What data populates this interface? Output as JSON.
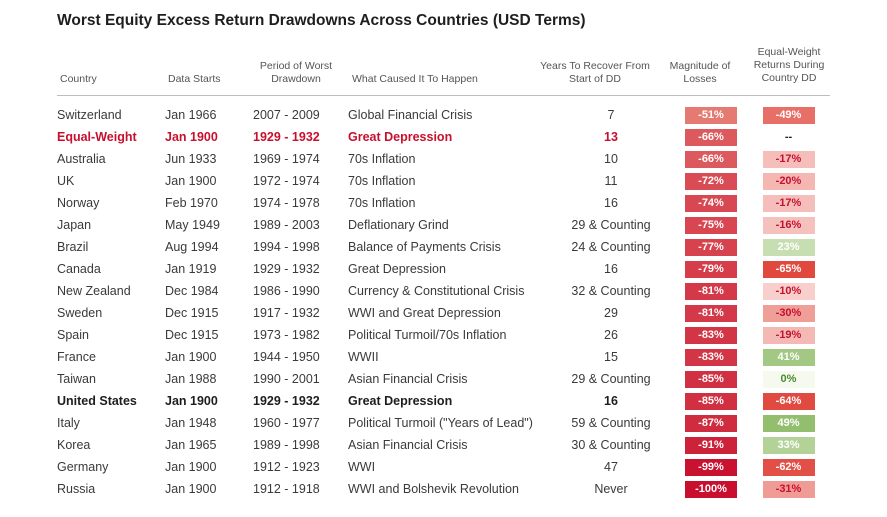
{
  "title": "Worst Equity Excess Return Drawdowns Across Countries (USD Terms)",
  "headers": {
    "country": "Country",
    "data_starts": "Data Starts",
    "period": "Period of Worst Drawdown",
    "cause": "What Caused It To Happen",
    "years": "Years To Recover From Start of DD",
    "magnitude": "Magnitude of Losses",
    "eq": "Equal-Weight Returns During Country DD"
  },
  "rows": [
    {
      "country": "Switzerland",
      "start": "Jan 1966",
      "period": "2007 - 2009",
      "cause": "Global Financial Crisis",
      "years": "7",
      "mag": "-51%",
      "eq": "-49%",
      "style": ""
    },
    {
      "country": "Equal-Weight",
      "start": "Jan 1900",
      "period": "1929 - 1932",
      "cause": "Great Depression",
      "years": "13",
      "mag": "-66%",
      "eq": "--",
      "style": "hl-red"
    },
    {
      "country": "Australia",
      "start": "Jun 1933",
      "period": "1969 - 1974",
      "cause": "70s Inflation",
      "years": "10",
      "mag": "-66%",
      "eq": "-17%",
      "style": ""
    },
    {
      "country": "UK",
      "start": "Jan 1900",
      "period": "1972 - 1974",
      "cause": "70s Inflation",
      "years": "11",
      "mag": "-72%",
      "eq": "-20%",
      "style": ""
    },
    {
      "country": "Norway",
      "start": "Feb 1970",
      "period": "1974 - 1978",
      "cause": "70s Inflation",
      "years": "16",
      "mag": "-74%",
      "eq": "-17%",
      "style": ""
    },
    {
      "country": "Japan",
      "start": "May 1949",
      "period": "1989 - 2003",
      "cause": "Deflationary Grind",
      "years": "29 & Counting",
      "mag": "-75%",
      "eq": "-16%",
      "style": ""
    },
    {
      "country": "Brazil",
      "start": "Aug 1994",
      "period": "1994 - 1998",
      "cause": "Balance of Payments Crisis",
      "years": "24 & Counting",
      "mag": "-77%",
      "eq": "23%",
      "style": ""
    },
    {
      "country": "Canada",
      "start": "Jan 1919",
      "period": "1929 - 1932",
      "cause": "Great Depression",
      "years": "16",
      "mag": "-79%",
      "eq": "-65%",
      "style": ""
    },
    {
      "country": "New Zealand",
      "start": "Dec 1984",
      "period": "1986 - 1990",
      "cause": "Currency & Constitutional Crisis",
      "years": "32 & Counting",
      "mag": "-81%",
      "eq": "-10%",
      "style": ""
    },
    {
      "country": "Sweden",
      "start": "Dec 1915",
      "period": "1917 - 1932",
      "cause": "WWI and Great Depression",
      "years": "29",
      "mag": "-81%",
      "eq": "-30%",
      "style": ""
    },
    {
      "country": "Spain",
      "start": "Dec 1915",
      "period": "1973 - 1982",
      "cause": "Political Turmoil/70s Inflation",
      "years": "26",
      "mag": "-83%",
      "eq": "-19%",
      "style": ""
    },
    {
      "country": "France",
      "start": "Jan 1900",
      "period": "1944 - 1950",
      "cause": "WWII",
      "years": "15",
      "mag": "-83%",
      "eq": "41%",
      "style": ""
    },
    {
      "country": "Taiwan",
      "start": "Jan 1988",
      "period": "1990 - 2001",
      "cause": "Asian Financial Crisis",
      "years": "29 & Counting",
      "mag": "-85%",
      "eq": "0%",
      "style": ""
    },
    {
      "country": "United States",
      "start": "Jan 1900",
      "period": "1929 - 1932",
      "cause": "Great Depression",
      "years": "16",
      "mag": "-85%",
      "eq": "-64%",
      "style": "hl-bold"
    },
    {
      "country": "Italy",
      "start": "Jan 1948",
      "period": "1960 - 1977",
      "cause": "Political Turmoil (\"Years of Lead\")",
      "years": "59 & Counting",
      "mag": "-87%",
      "eq": "49%",
      "style": ""
    },
    {
      "country": "Korea",
      "start": "Jan 1965",
      "period": "1989 - 1998",
      "cause": "Asian Financial Crisis",
      "years": "30 & Counting",
      "mag": "-91%",
      "eq": "33%",
      "style": ""
    },
    {
      "country": "Germany",
      "start": "Jan 1900",
      "period": "1912 - 1923",
      "cause": "WWI",
      "years": "47",
      "mag": "-99%",
      "eq": "-62%",
      "style": ""
    },
    {
      "country": "Russia",
      "start": "Jan 1900",
      "period": "1912 - 1918",
      "cause": "WWI and Bolshevik Revolution",
      "years": "Never",
      "mag": "-100%",
      "eq": "-31%",
      "style": ""
    }
  ],
  "chart_data": {
    "type": "table",
    "title": "Worst Equity Excess Return Drawdowns Across Countries (USD Terms)",
    "columns": [
      "Country",
      "Data Starts",
      "Period of Worst Drawdown",
      "What Caused It To Happen",
      "Years To Recover From Start of DD",
      "Magnitude of Losses",
      "Equal-Weight Returns During Country DD"
    ],
    "magnitude_of_losses": [
      -51,
      -66,
      -66,
      -72,
      -74,
      -75,
      -77,
      -79,
      -81,
      -81,
      -83,
      -83,
      -85,
      -85,
      -87,
      -91,
      -99,
      -100
    ],
    "equal_weight_returns": [
      -49,
      null,
      -17,
      -20,
      -17,
      -16,
      23,
      -65,
      -10,
      -30,
      -19,
      41,
      0,
      -64,
      49,
      33,
      -62,
      -31
    ]
  },
  "colors": {
    "highlight_red": "#c8102e",
    "negative_scale": "red",
    "positive_scale": "green"
  }
}
